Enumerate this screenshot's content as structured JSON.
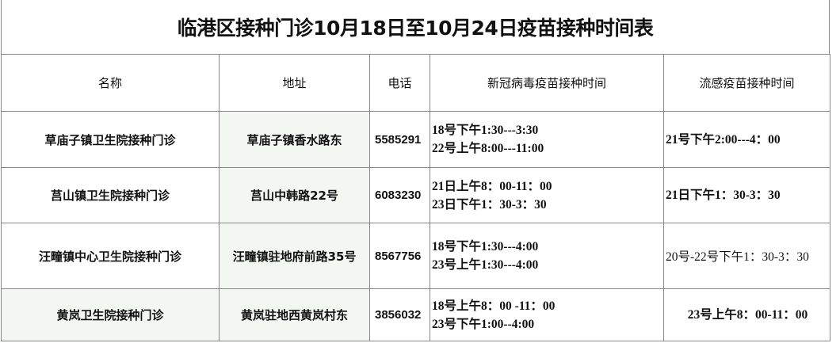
{
  "title": "临港区接种门诊10月18日至10月24日疫苗接种时间表",
  "headers": [
    "名称",
    "地址",
    "电话",
    "新冠病毒疫苗接种时间",
    "流感疫苗接种时间"
  ],
  "rows": [
    {
      "name": "草庙子镇卫生院接种门诊",
      "address": "草庙子镇香水路东",
      "phone": "5585291",
      "covid": [
        "18号下午1:30---3:30",
        "22号上午8:00---11:00"
      ],
      "flu": "21号下午2:00---4：00"
    },
    {
      "name": "莒山镇卫生院接种门诊",
      "address": "莒山中韩路22号",
      "phone": "6083230",
      "covid": [
        "21日上午8：00-11：00",
        "23日下午1：30-3：30"
      ],
      "flu": "21日下午1：30-3：30"
    },
    {
      "name": "汪疃镇中心卫生院接种门诊",
      "address": "汪疃镇驻地府前路35号",
      "phone": "8567756",
      "covid": [
        "18号下午1:30---4:00",
        "23号上午1:30---4:00"
      ],
      "flu": "20号-22号下午1：30-3：30"
    },
    {
      "name": "黄岚卫生院接种门诊",
      "address": "黄岚驻地西黄岚村东",
      "phone": "3856032",
      "covid": [
        "18号上午8：00 -11：00",
        "23号下午1:00--4:00"
      ],
      "flu": "23号上午8：00-11：00"
    }
  ],
  "colors": {
    "border": "#888888",
    "tint": "#f2f7f2"
  }
}
